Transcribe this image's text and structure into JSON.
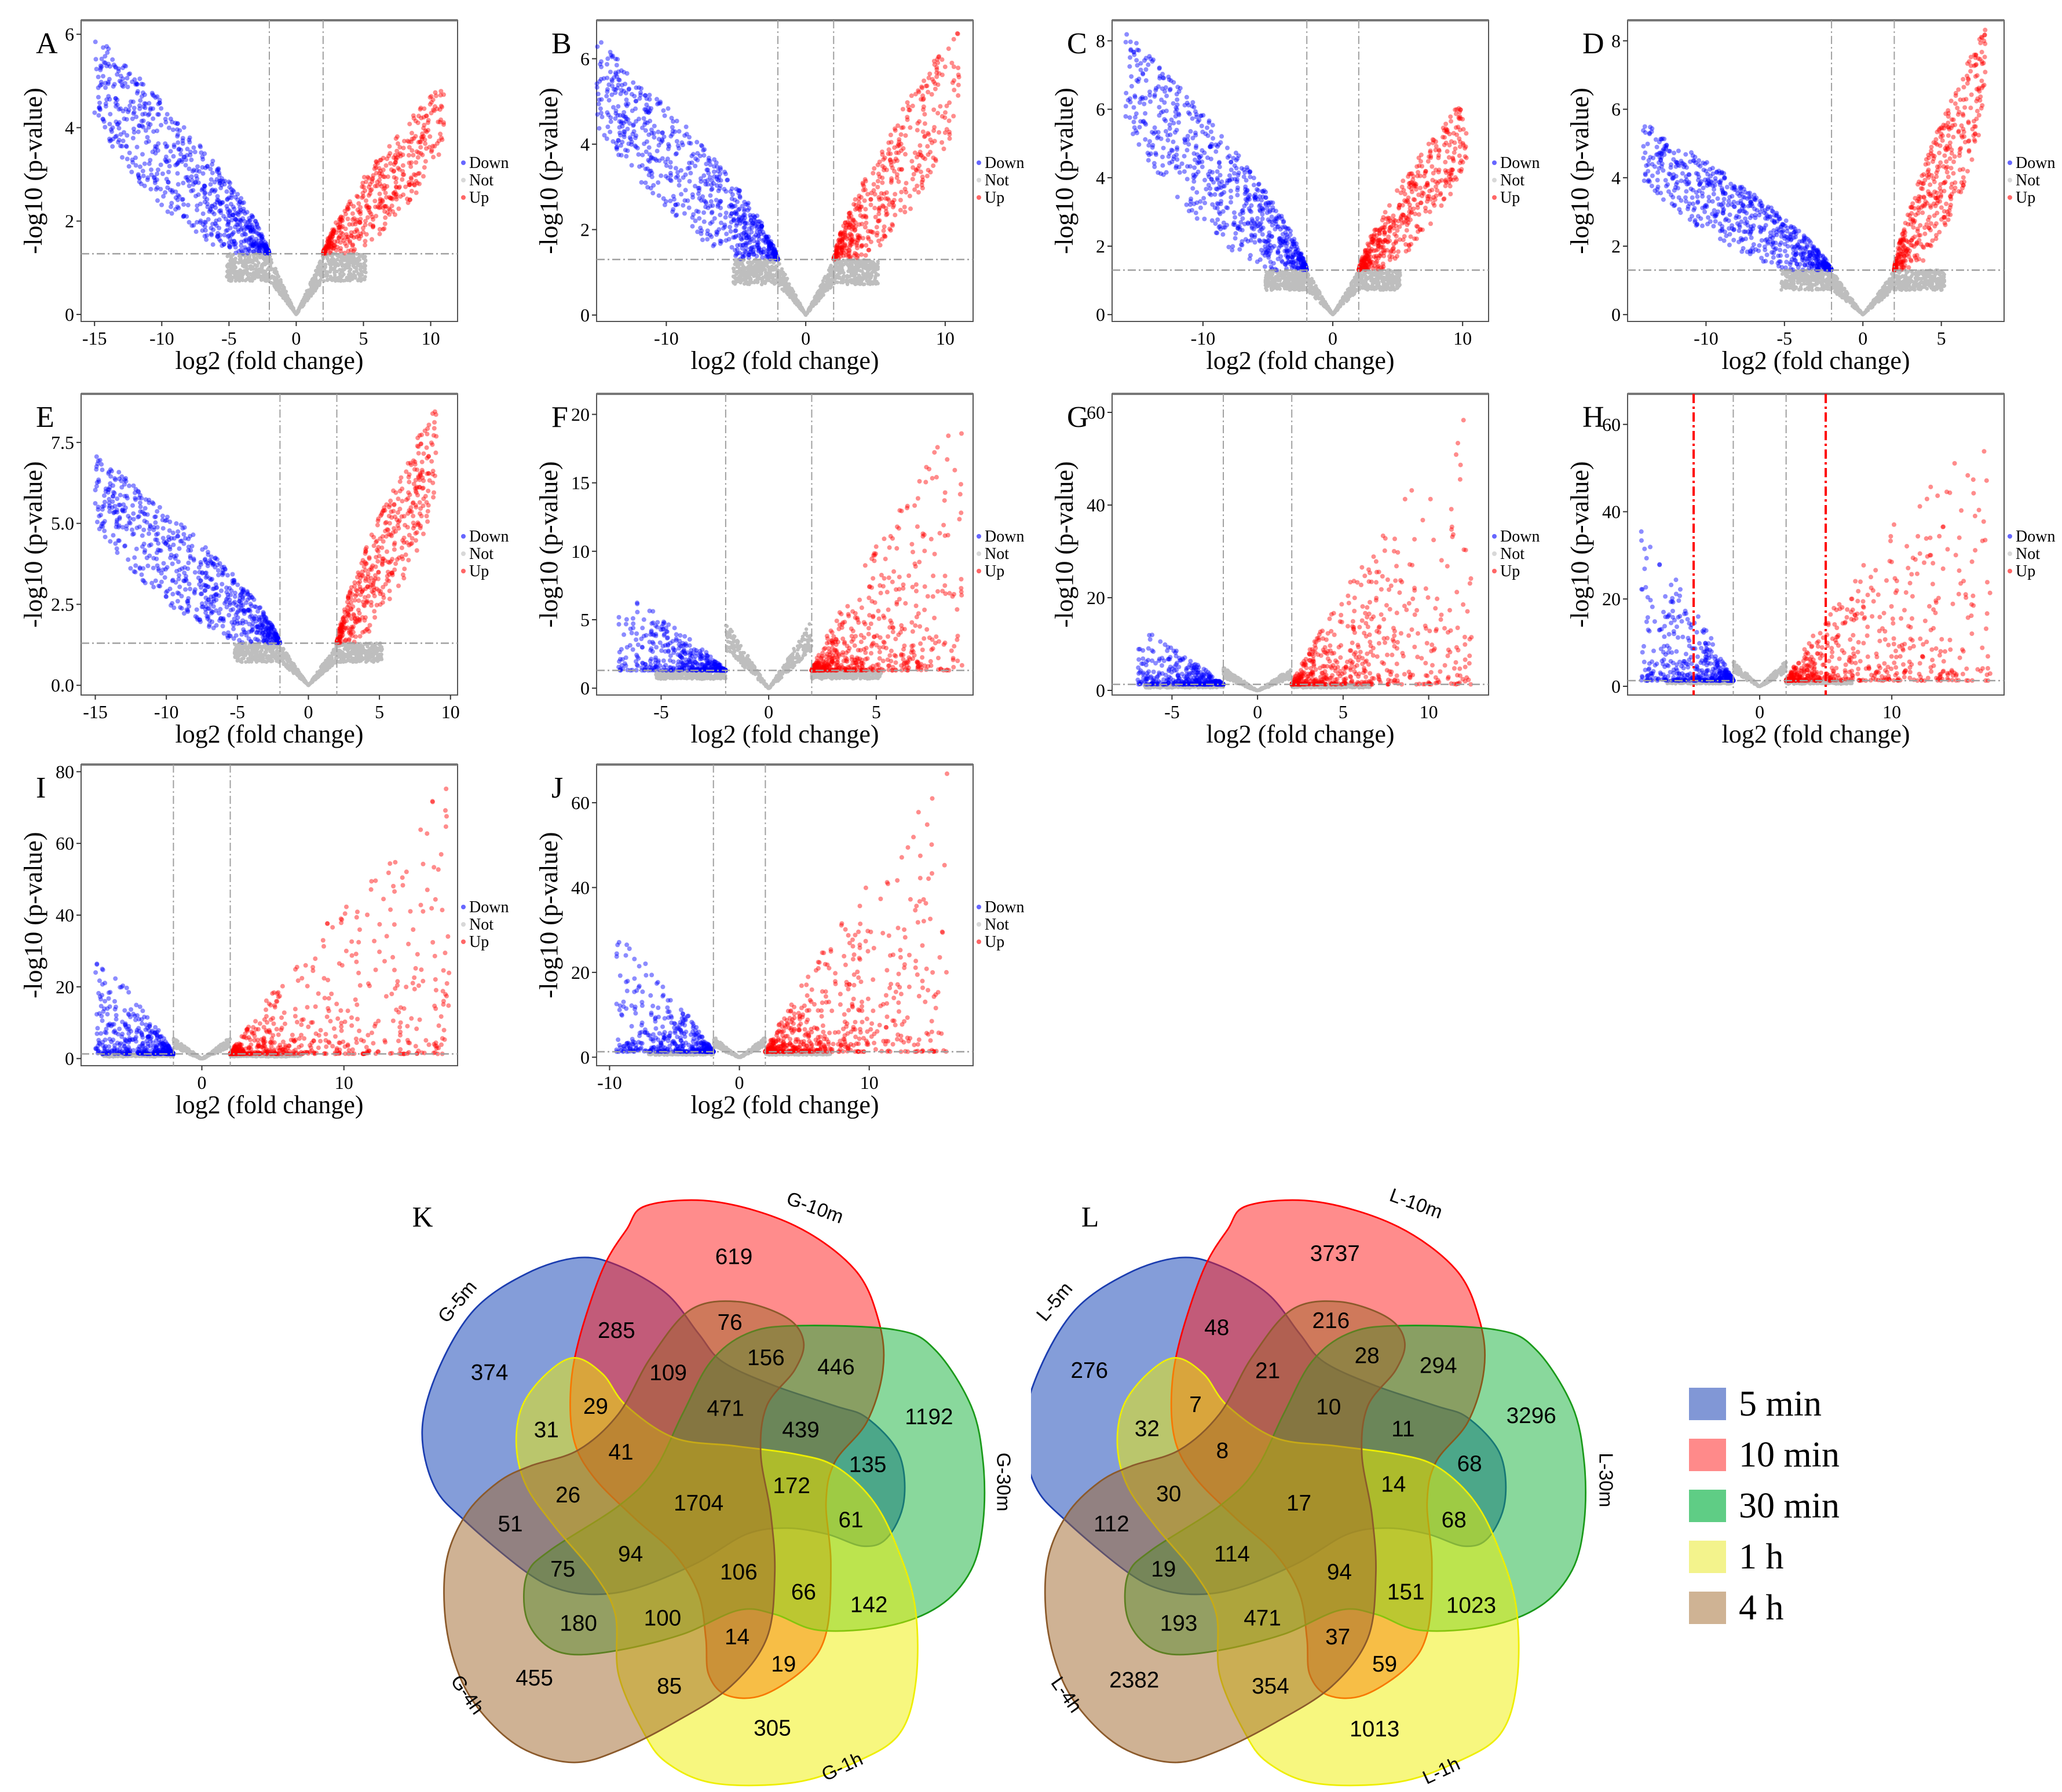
{
  "chart_data": [
    {
      "panel": "A",
      "type": "scatter",
      "xlabel": "log2 (fold change)",
      "ylabel": "-log10 (p-value)",
      "xlim": [
        -16,
        12
      ],
      "ylim": [
        -0.15,
        6.3
      ],
      "xticks": [
        -15,
        -10,
        -5,
        0,
        5,
        10
      ],
      "yticks": [
        0,
        2,
        4,
        6
      ],
      "ytick_labels": [
        "0",
        "2",
        "4",
        "6"
      ],
      "fc_threshold": 2,
      "p_threshold": 1.3,
      "down_x_range": [
        -15,
        -2
      ],
      "down_ymax": 6.0,
      "up_x_range": [
        2,
        11
      ],
      "up_ymax": 5.0,
      "gray_edge_y": 1.3,
      "style": "steep"
    },
    {
      "panel": "B",
      "type": "scatter",
      "xlabel": "log2 (fold change)",
      "ylabel": "-log10 (p-value)",
      "xlim": [
        -15,
        12
      ],
      "ylim": [
        -0.15,
        6.9
      ],
      "xticks": [
        -10,
        0,
        10
      ],
      "yticks": [
        0,
        2,
        4,
        6
      ],
      "ytick_labels": [
        "0",
        "2",
        "4",
        "6"
      ],
      "fc_threshold": 2,
      "p_threshold": 1.3,
      "down_x_range": [
        -15,
        -2
      ],
      "down_ymax": 6.5,
      "up_x_range": [
        2,
        11
      ],
      "up_ymax": 6.8,
      "gray_edge_y": 1.3,
      "style": "steep"
    },
    {
      "panel": "C",
      "type": "scatter",
      "xlabel": "log2 (fold change)",
      "ylabel": "-log10 (p-value)",
      "xlim": [
        -17,
        12
      ],
      "ylim": [
        -0.2,
        8.6
      ],
      "xticks": [
        -10,
        0,
        10
      ],
      "yticks": [
        0,
        2,
        4,
        6,
        8
      ],
      "ytick_labels": [
        "0",
        "2",
        "4",
        "6",
        "8"
      ],
      "fc_threshold": 2,
      "p_threshold": 1.3,
      "down_x_range": [
        -16,
        -2
      ],
      "down_ymax": 8.3,
      "up_x_range": [
        2,
        10.3
      ],
      "up_ymax": 6.4,
      "gray_edge_y": 1.3,
      "style": "steep"
    },
    {
      "panel": "D",
      "type": "scatter",
      "xlabel": "log2 (fold change)",
      "ylabel": "-log10 (p-value)",
      "xlim": [
        -15,
        9
      ],
      "ylim": [
        -0.2,
        8.6
      ],
      "xticks": [
        -10,
        -5,
        0,
        5
      ],
      "yticks": [
        0,
        2,
        4,
        6,
        8
      ],
      "ytick_labels": [
        "0",
        "2",
        "4",
        "6",
        "8"
      ],
      "fc_threshold": 2,
      "p_threshold": 1.3,
      "down_x_range": [
        -14,
        -2
      ],
      "down_ymax": 5.6,
      "up_x_range": [
        2,
        7.8
      ],
      "up_ymax": 8.4,
      "gray_edge_y": 1.3,
      "style": "steep"
    },
    {
      "panel": "E",
      "type": "scatter",
      "xlabel": "log2 (fold change)",
      "ylabel": "-log10 (p-value)",
      "xlim": [
        -16,
        10.5
      ],
      "ylim": [
        -0.3,
        9
      ],
      "xticks": [
        -15,
        -10,
        -5,
        0,
        5,
        10
      ],
      "yticks": [
        0,
        2.5,
        5,
        7.5
      ],
      "ytick_labels": [
        "0.0",
        "2.5",
        "5.0",
        "7.5"
      ],
      "fc_threshold": 2,
      "p_threshold": 1.3,
      "down_x_range": [
        -15,
        -2
      ],
      "down_ymax": 7.2,
      "up_x_range": [
        2,
        9
      ],
      "up_ymax": 8.7,
      "gray_edge_y": 1.3,
      "style": "steep"
    },
    {
      "panel": "F",
      "type": "scatter",
      "xlabel": "log2 (fold change)",
      "ylabel": "-log10 (p-value)",
      "xlim": [
        -8,
        9.5
      ],
      "ylim": [
        -0.5,
        21.5
      ],
      "xticks": [
        -5,
        0,
        5
      ],
      "yticks": [
        0,
        5,
        10,
        15,
        20
      ],
      "ytick_labels": [
        "0",
        "5",
        "10",
        "15",
        "20"
      ],
      "fc_threshold": 2,
      "p_threshold": 1.3,
      "down_x_range": [
        -7,
        -2
      ],
      "down_ymax": 7.5,
      "up_x_range": [
        2,
        9
      ],
      "up_ymax": 21,
      "gray_edge_y": 5,
      "style": "flat"
    },
    {
      "panel": "G",
      "type": "scatter",
      "xlabel": "log2 (fold change)",
      "ylabel": "-log10 (p-value)",
      "xlim": [
        -8.5,
        13.5
      ],
      "ylim": [
        -1,
        64
      ],
      "xticks": [
        -5,
        0,
        5,
        10
      ],
      "yticks": [
        0,
        20,
        40,
        60
      ],
      "ytick_labels": [
        "0",
        "20",
        "40",
        "60"
      ],
      "fc_threshold": 2,
      "p_threshold": 1.3,
      "down_x_range": [
        -7,
        -2
      ],
      "down_ymax": 14,
      "up_x_range": [
        2,
        12.5
      ],
      "up_ymax": 62,
      "gray_edge_y": 5,
      "style": "flat"
    },
    {
      "panel": "H",
      "type": "scatter",
      "xlabel": "log2 (fold change)",
      "ylabel": "-log10 (p-value)",
      "xlim": [
        -10,
        18.5
      ],
      "ylim": [
        -2,
        67
      ],
      "xticks": [
        0,
        10
      ],
      "yticks": [
        0,
        20,
        40,
        60
      ],
      "ytick_labels": [
        "0",
        "20",
        "40",
        "60"
      ],
      "fc_threshold": 2,
      "p_threshold": 1.3,
      "extra_fc_threshold": 5,
      "down_x_range": [
        -9,
        -2
      ],
      "down_ymax": 37,
      "up_x_range": [
        2,
        17.5
      ],
      "up_ymax": 65,
      "gray_edge_y": 6,
      "style": "flat"
    },
    {
      "panel": "I",
      "type": "scatter",
      "xlabel": "log2 (fold change)",
      "ylabel": "-log10 (p-value)",
      "xlim": [
        -8.5,
        18
      ],
      "ylim": [
        -2,
        82
      ],
      "xticks": [
        0,
        10
      ],
      "yticks": [
        0,
        20,
        40,
        60,
        80
      ],
      "ytick_labels": [
        "0",
        "20",
        "40",
        "60",
        "80"
      ],
      "fc_threshold": 2,
      "p_threshold": 1.3,
      "down_x_range": [
        -7.5,
        -2
      ],
      "down_ymax": 31,
      "up_x_range": [
        2,
        17.5
      ],
      "up_ymax": 78,
      "gray_edge_y": 6,
      "style": "flat"
    },
    {
      "panel": "J",
      "type": "scatter",
      "xlabel": "log2 (fold change)",
      "ylabel": "-log10 (p-value)",
      "xlim": [
        -11,
        18
      ],
      "ylim": [
        -2,
        69
      ],
      "xticks": [
        -10,
        0,
        10
      ],
      "yticks": [
        0,
        20,
        40,
        60
      ],
      "ytick_labels": [
        "0",
        "20",
        "40",
        "60"
      ],
      "fc_threshold": 2,
      "p_threshold": 1.3,
      "down_x_range": [
        -9.5,
        -2
      ],
      "down_ymax": 30,
      "up_x_range": [
        2,
        16
      ],
      "up_ymax": 68,
      "gray_edge_y": 5,
      "style": "flat"
    }
  ],
  "scatter_legend": [
    {
      "label": "Down",
      "color": "#0000ff"
    },
    {
      "label": "Not",
      "color": "#bebebe"
    },
    {
      "label": "Up",
      "color": "#ff0000"
    }
  ],
  "threshold_colors": {
    "gray": "#a0a0a0",
    "extra": "#ff0000"
  },
  "venn": [
    {
      "panel": "K",
      "sets": [
        "G-5m",
        "G-10m",
        "G-30m",
        "G-1h",
        "G-4h"
      ],
      "values": [
        619,
        285,
        374,
        76,
        156,
        446,
        109,
        29,
        471,
        1192,
        31,
        439,
        41,
        135,
        172,
        26,
        1704,
        61,
        51,
        94,
        75,
        106,
        66,
        142,
        180,
        100,
        14,
        19,
        455,
        85,
        305
      ]
    },
    {
      "panel": "L",
      "sets": [
        "L-5m",
        "L-10m",
        "L-30m",
        "L-1h",
        "L-4h"
      ],
      "values": [
        3737,
        48,
        276,
        216,
        28,
        294,
        21,
        7,
        10,
        3296,
        32,
        11,
        8,
        68,
        14,
        30,
        17,
        68,
        112,
        114,
        19,
        94,
        151,
        1023,
        193,
        471,
        37,
        59,
        2382,
        354,
        1013
      ]
    }
  ],
  "venn_legend": [
    {
      "label": "5 min",
      "color": "#8197d6"
    },
    {
      "label": "10 min",
      "color": "#ff8a8a"
    },
    {
      "label": "30 min",
      "color": "#5fcd85"
    },
    {
      "label": "1 h",
      "color": "#f3f38c"
    },
    {
      "label": "4 h",
      "color": "#cfb394"
    }
  ]
}
